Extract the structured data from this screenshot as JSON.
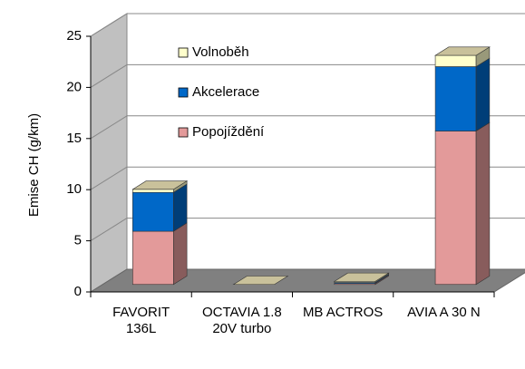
{
  "chart_data": {
    "type": "bar3d_stacked",
    "y_label": "Emise CH (g/km)",
    "categories": [
      "FAVORIT 136L",
      "OCTAVIA 1.8 20V turbo",
      "MB ACTROS",
      "AVIA A 30 N"
    ],
    "series": [
      {
        "name": "Popojíždění",
        "color": "#e39a9a",
        "values": [
          5.2,
          0,
          0.1,
          15.0
        ]
      },
      {
        "name": "Akcelerace",
        "color": "#0068c8",
        "values": [
          3.8,
          0,
          0.1,
          6.3
        ]
      },
      {
        "name": "Volnoběh",
        "color": "#ffffcc",
        "values": [
          0.3,
          0,
          0.1,
          1.1
        ]
      }
    ],
    "legend_order": [
      "Volnoběh",
      "Akcelerace",
      "Popojíždění"
    ],
    "top_color": "#c9c19b",
    "ylim": [
      0,
      25
    ],
    "yticks": [
      0,
      5,
      10,
      15,
      20,
      25
    ],
    "grid": true
  }
}
